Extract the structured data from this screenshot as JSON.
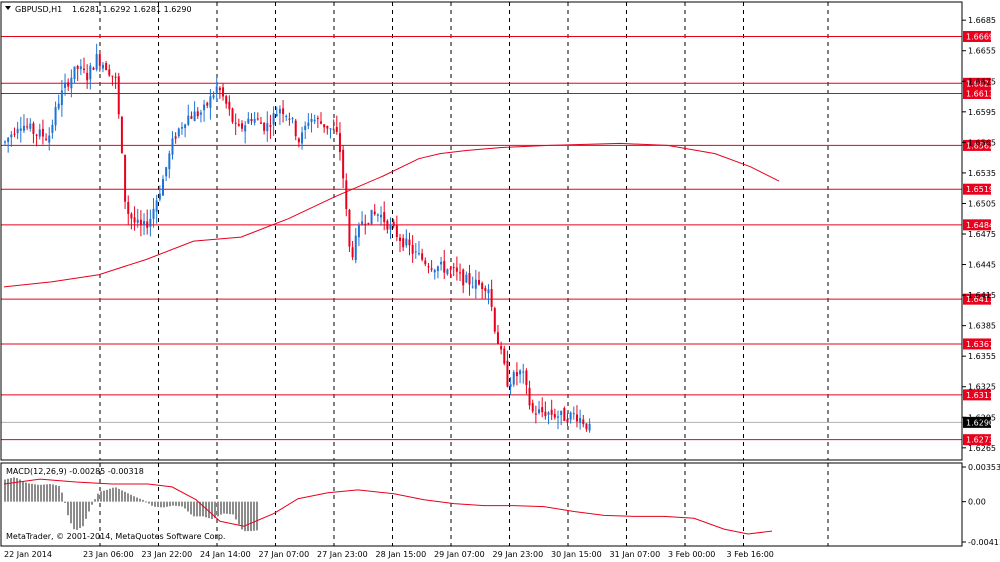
{
  "window": {
    "symbol_header": "GBPUSD,H1",
    "ohlc_header": "1.6281 1.6292 1.6281 1.6290",
    "copyright": "MetaTrader, © 2001-2014, MetaQuotes Software Corp."
  },
  "colors": {
    "background": "#ffffff",
    "up_candle": "#1e73d6",
    "down_candle": "#e8001c",
    "level_line": "#e8001c",
    "moving_average": "#e8001c",
    "grid_vertical": "#000000",
    "histogram": "#8c8c8c",
    "signal_line": "#e8001c",
    "current_price_bg": "#000000"
  },
  "chart_data": [
    {
      "type": "candlestick",
      "symbol": "GBPUSD",
      "timeframe": "H1",
      "ylim": [
        1.6255,
        1.6695
      ],
      "y_ticks": [
        "1.6685",
        "1.6655",
        "1.6625",
        "1.6595",
        "1.6565",
        "1.6535",
        "1.6505",
        "1.6475",
        "1.6445",
        "1.6415",
        "1.6385",
        "1.6355",
        "1.6325",
        "1.6295",
        "1.6265"
      ],
      "horizontal_levels": [
        "1.6669",
        "1.6623",
        "1.6613",
        "1.6562",
        "1.6519",
        "1.6484",
        "1.6411",
        "1.6367",
        "1.6317",
        "1.6273"
      ],
      "current_price": "1.6290",
      "x_labels": [
        "22 Jan 2014",
        "23 Jan 06:00",
        "23 Jan 22:00",
        "24 Jan 14:00",
        "27 Jan 07:00",
        "27 Jan 23:00",
        "28 Jan 15:00",
        "29 Jan 07:00",
        "29 Jan 23:00",
        "30 Jan 15:00",
        "31 Jan 07:00",
        "3 Feb 00:00",
        "3 Feb 16:00"
      ],
      "candle_count": 186,
      "moving_average": [
        [
          0,
          1.6423
        ],
        [
          20,
          1.6428
        ],
        [
          40,
          1.6435
        ],
        [
          60,
          1.645
        ],
        [
          80,
          1.6468
        ],
        [
          100,
          1.6472
        ],
        [
          120,
          1.649
        ],
        [
          140,
          1.6512
        ],
        [
          160,
          1.6532
        ],
        [
          175,
          1.6549
        ],
        [
          184,
          1.6554
        ],
        [
          195,
          1.6557
        ],
        [
          210,
          1.656
        ],
        [
          230,
          1.6562
        ],
        [
          260,
          1.6564
        ],
        [
          280,
          1.6562
        ],
        [
          300,
          1.6554
        ],
        [
          315,
          1.6541
        ],
        [
          327,
          1.6527
        ]
      ],
      "price_path": [
        [
          0,
          1.6565
        ],
        [
          6,
          1.6585
        ],
        [
          12,
          1.6575
        ],
        [
          18,
          1.657
        ],
        [
          22,
          1.6605
        ],
        [
          26,
          1.6625
        ],
        [
          30,
          1.6638
        ],
        [
          34,
          1.663
        ],
        [
          38,
          1.6648
        ],
        [
          42,
          1.664
        ],
        [
          46,
          1.6625
        ],
        [
          50,
          1.65
        ],
        [
          54,
          1.6485
        ],
        [
          57,
          1.648
        ],
        [
          60,
          1.649
        ],
        [
          65,
          1.6525
        ],
        [
          70,
          1.657
        ],
        [
          75,
          1.659
        ],
        [
          82,
          1.6595
        ],
        [
          88,
          1.662
        ],
        [
          92,
          1.66
        ],
        [
          96,
          1.6575
        ],
        [
          102,
          1.659
        ],
        [
          108,
          1.658
        ],
        [
          114,
          1.66
        ],
        [
          118,
          1.659
        ],
        [
          122,
          1.6565
        ],
        [
          126,
          1.659
        ],
        [
          134,
          1.658
        ],
        [
          138,
          1.657
        ],
        [
          140,
          1.653
        ],
        [
          143,
          1.645
        ],
        [
          148,
          1.649
        ],
        [
          155,
          1.6495
        ],
        [
          160,
          1.648
        ],
        [
          166,
          1.6465
        ],
        [
          170,
          1.6455
        ],
        [
          176,
          1.6445
        ],
        [
          184,
          1.644
        ],
        [
          190,
          1.643
        ],
        [
          196,
          1.6425
        ],
        [
          200,
          1.6425
        ],
        [
          203,
          1.638
        ],
        [
          208,
          1.633
        ],
        [
          214,
          1.634
        ],
        [
          218,
          1.63
        ],
        [
          224,
          1.63
        ],
        [
          232,
          1.6295
        ],
        [
          236,
          1.6298
        ],
        [
          240,
          1.629
        ],
        [
          242,
          1.6283
        ]
      ]
    },
    {
      "type": "bar",
      "indicator_label": "MACD(12,26,9) -0.00285 -0.00318",
      "ylim": [
        -0.00411,
        0.00353
      ],
      "y_ticks": [
        "0.00353",
        "0.00",
        "-0.00411"
      ],
      "histogram_path": [
        [
          0,
          0.0022
        ],
        [
          12,
          0.0025
        ],
        [
          24,
          0.0019
        ],
        [
          36,
          0.0017
        ],
        [
          48,
          0.0018
        ],
        [
          56,
          0.0016
        ],
        [
          60,
          0.0007
        ],
        [
          66,
          -0.0018
        ],
        [
          72,
          -0.003
        ],
        [
          80,
          -0.0025
        ],
        [
          88,
          -0.0005
        ],
        [
          96,
          0.001
        ],
        [
          104,
          0.0012
        ],
        [
          112,
          0.0015
        ],
        [
          122,
          0.001
        ],
        [
          132,
          0.0005
        ],
        [
          142,
          0.0001
        ],
        [
          150,
          -0.0005
        ],
        [
          160,
          -0.0006
        ],
        [
          170,
          -0.0004
        ],
        [
          180,
          -0.0005
        ],
        [
          190,
          -0.0015
        ],
        [
          200,
          -0.0015
        ],
        [
          210,
          -0.0018
        ],
        [
          220,
          -0.0012
        ],
        [
          230,
          -0.0013
        ],
        [
          240,
          -0.003
        ],
        [
          248,
          -0.003
        ],
        [
          256,
          -0.0029
        ]
      ],
      "signal_path": [
        [
          0,
          0.0018
        ],
        [
          12,
          0.0023
        ],
        [
          24,
          0.002
        ],
        [
          36,
          0.0018
        ],
        [
          48,
          0.0018
        ],
        [
          56,
          0.0015
        ],
        [
          64,
          0.0002
        ],
        [
          72,
          -0.002
        ],
        [
          80,
          -0.0025
        ],
        [
          90,
          -0.0012
        ],
        [
          98,
          0.0003
        ],
        [
          108,
          0.0009
        ],
        [
          118,
          0.0012
        ],
        [
          130,
          0.0008
        ],
        [
          140,
          0.0002
        ],
        [
          150,
          -0.0002
        ],
        [
          160,
          -0.0004
        ],
        [
          170,
          -0.0004
        ],
        [
          180,
          -0.0005
        ],
        [
          190,
          -0.001
        ],
        [
          200,
          -0.0014
        ],
        [
          210,
          -0.0015
        ],
        [
          220,
          -0.0015
        ],
        [
          230,
          -0.0017
        ],
        [
          240,
          -0.0028
        ],
        [
          248,
          -0.0033
        ],
        [
          256,
          -0.003
        ]
      ]
    }
  ]
}
